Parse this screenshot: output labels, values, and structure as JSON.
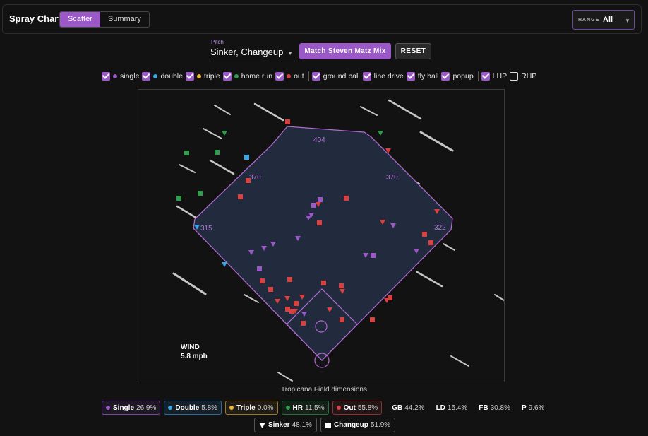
{
  "header": {
    "title": "Spray Chart",
    "tabs": [
      {
        "label": "Scatter",
        "active": true
      },
      {
        "label": "Summary",
        "active": false
      }
    ],
    "range_label": "RANGE",
    "range_value": "All"
  },
  "controls": {
    "pitch_label": "Pitch",
    "pitch_value": "Sinker, Changeup",
    "match_button": "Match Steven Matz Mix",
    "reset_button": "RESET"
  },
  "filters": {
    "outcomes": [
      {
        "label": "single",
        "color": "#9b59c8",
        "checked": true
      },
      {
        "label": "double",
        "color": "#3aa7e8",
        "checked": true
      },
      {
        "label": "triple",
        "color": "#f2b632",
        "checked": true
      },
      {
        "label": "home run",
        "color": "#2e9e4f",
        "checked": true
      },
      {
        "label": "out",
        "color": "#d94040",
        "checked": true
      }
    ],
    "batted": [
      {
        "label": "ground ball",
        "checked": true
      },
      {
        "label": "line drive",
        "checked": true
      },
      {
        "label": "fly ball",
        "checked": true
      },
      {
        "label": "popup",
        "checked": true
      }
    ],
    "hand": [
      {
        "label": "LHP",
        "checked": true
      },
      {
        "label": "RHP",
        "checked": false
      }
    ]
  },
  "field": {
    "distances": {
      "left": "315",
      "left_center": "370",
      "center": "404",
      "right_center": "370",
      "right": "322"
    },
    "wind_label": "WIND",
    "wind_speed": "5.8 mph",
    "caption": "Tropicana Field dimensions"
  },
  "colors": {
    "single": "#9b59c8",
    "double": "#3aa7e8",
    "triple": "#f2b632",
    "hr": "#2e9e4f",
    "out": "#d94040"
  },
  "stats": {
    "outcomes": [
      {
        "label": "Single",
        "value": "26.9%",
        "color": "#9b59c8",
        "border": "#7a4aa0"
      },
      {
        "label": "Double",
        "value": "5.8%",
        "color": "#3aa7e8",
        "border": "#2d6e98"
      },
      {
        "label": "Triple",
        "value": "0.0%",
        "color": "#f2b632",
        "border": "#9c7a25"
      },
      {
        "label": "HR",
        "value": "11.5%",
        "color": "#2e9e4f",
        "border": "#2a6e3c"
      },
      {
        "label": "Out",
        "value": "55.8%",
        "color": "#d94040",
        "border": "#8e3030"
      }
    ],
    "batted": [
      {
        "label": "GB",
        "value": "44.2%"
      },
      {
        "label": "LD",
        "value": "15.4%"
      },
      {
        "label": "FB",
        "value": "30.8%"
      },
      {
        "label": "P",
        "value": "9.6%"
      }
    ],
    "pitches": [
      {
        "label": "Sinker",
        "value": "48.1%",
        "icon": "triangle-down"
      },
      {
        "label": "Changeup",
        "value": "51.9%",
        "icon": "square"
      }
    ]
  }
}
